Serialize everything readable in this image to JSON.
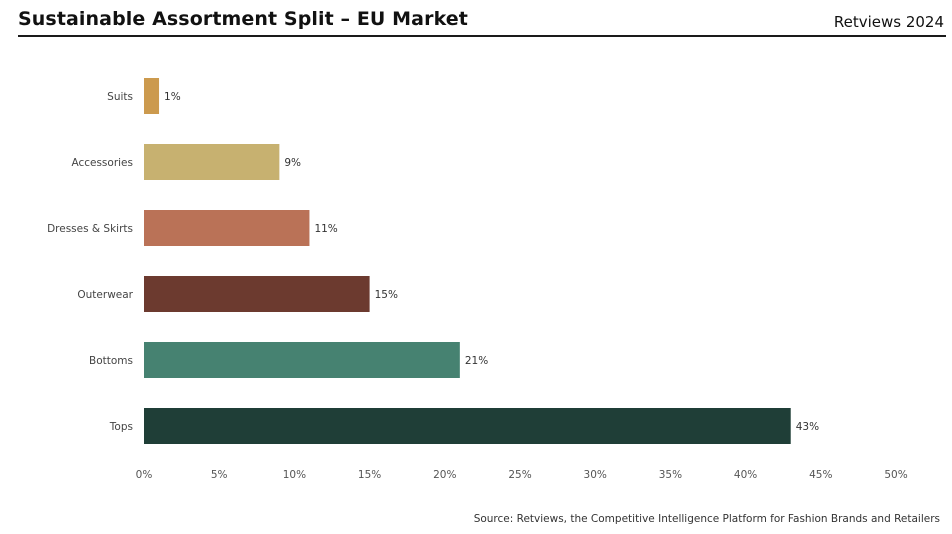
{
  "header": {
    "title": "Sustainable Assortment Split – EU Market",
    "brand": "Retviews 2024"
  },
  "footer": {
    "source": "Source: Retviews, the Competitive Intelligence Platform for Fashion Brands and Retailers"
  },
  "chart_data": {
    "type": "bar",
    "orientation": "horizontal",
    "title": "Sustainable Assortment Split – EU Market",
    "xlabel": "",
    "ylabel": "",
    "categories": [
      "Suits",
      "Accessories",
      "Dresses & Skirts",
      "Outerwear",
      "Bottoms",
      "Tops"
    ],
    "values": [
      1,
      9,
      11,
      15,
      21,
      43
    ],
    "value_labels": [
      "1%",
      "9%",
      "11%",
      "15%",
      "21%",
      "43%"
    ],
    "colors": [
      "#cc9a4e",
      "#c7b170",
      "#ba7257",
      "#6c3a2f",
      "#468271",
      "#1f3e37"
    ],
    "xlim": [
      0,
      50
    ],
    "xticks": [
      0,
      5,
      10,
      15,
      20,
      25,
      30,
      35,
      40,
      45,
      50
    ],
    "xtick_labels": [
      "0%",
      "5%",
      "10%",
      "15%",
      "20%",
      "25%",
      "30%",
      "35%",
      "40%",
      "45%",
      "50%"
    ],
    "grid": false,
    "legend": "none"
  }
}
